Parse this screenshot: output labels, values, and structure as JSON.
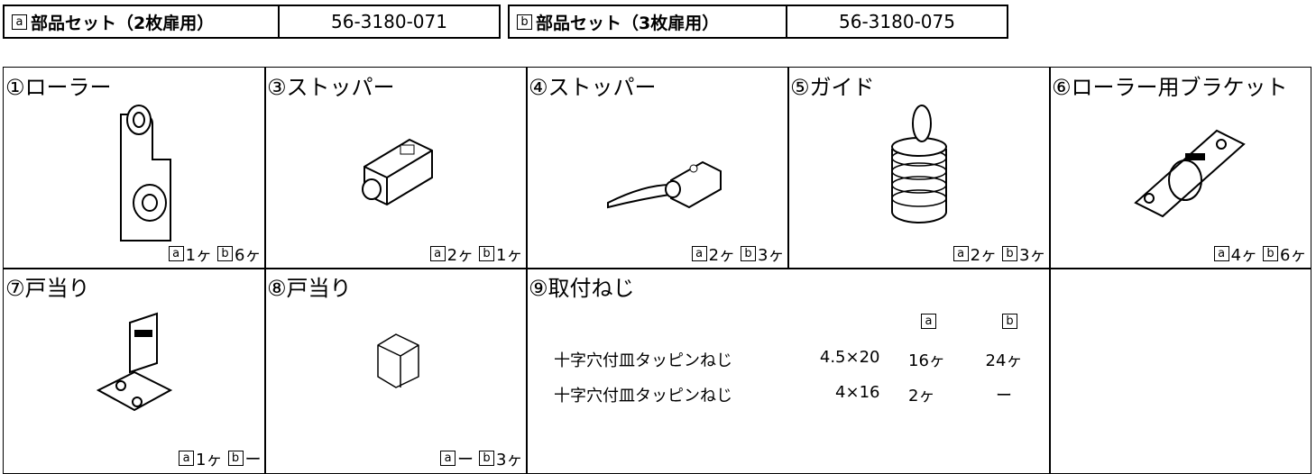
{
  "header": {
    "sets": [
      {
        "marker": "a",
        "name": "部品セット（2枚扉用）",
        "code": "56-3180-071"
      },
      {
        "marker": "b",
        "name": "部品セット（3枚扉用）",
        "code": "56-3180-075"
      }
    ]
  },
  "parts": [
    {
      "label": "①ローラー",
      "qty": [
        {
          "marker": "a",
          "count": "1ヶ"
        },
        {
          "marker": "b",
          "count": "6ヶ"
        }
      ]
    },
    {
      "label": "③ストッパー",
      "qty": [
        {
          "marker": "a",
          "count": "2ヶ"
        },
        {
          "marker": "b",
          "count": "1ヶ"
        }
      ]
    },
    {
      "label": "④ストッパー",
      "qty": [
        {
          "marker": "a",
          "count": "2ヶ"
        },
        {
          "marker": "b",
          "count": "3ヶ"
        }
      ]
    },
    {
      "label": "⑤ガイド",
      "qty": [
        {
          "marker": "a",
          "count": "2ヶ"
        },
        {
          "marker": "b",
          "count": "3ヶ"
        }
      ]
    },
    {
      "label": "⑥ローラー用ブラケット",
      "qty": [
        {
          "marker": "a",
          "count": "4ヶ"
        },
        {
          "marker": "b",
          "count": "6ヶ"
        }
      ]
    },
    {
      "label": "⑦戸当り",
      "qty": [
        {
          "marker": "a",
          "count": "1ヶ"
        },
        {
          "marker": "b",
          "count": "ー"
        }
      ]
    },
    {
      "label": "⑧戸当り",
      "qty": [
        {
          "marker": "a",
          "count": "ー"
        },
        {
          "marker": "b",
          "count": "3ヶ"
        }
      ]
    }
  ],
  "screws": {
    "label": "⑨取付ねじ",
    "columns": [
      "a",
      "b"
    ],
    "rows": [
      {
        "name": "十字穴付皿タッピンねじ",
        "size": "4.5×20",
        "a": "16ヶ",
        "b": "24ヶ"
      },
      {
        "name": "十字穴付皿タッピンねじ",
        "size": "4×16",
        "a": "2ヶ",
        "b": "ー"
      }
    ]
  }
}
